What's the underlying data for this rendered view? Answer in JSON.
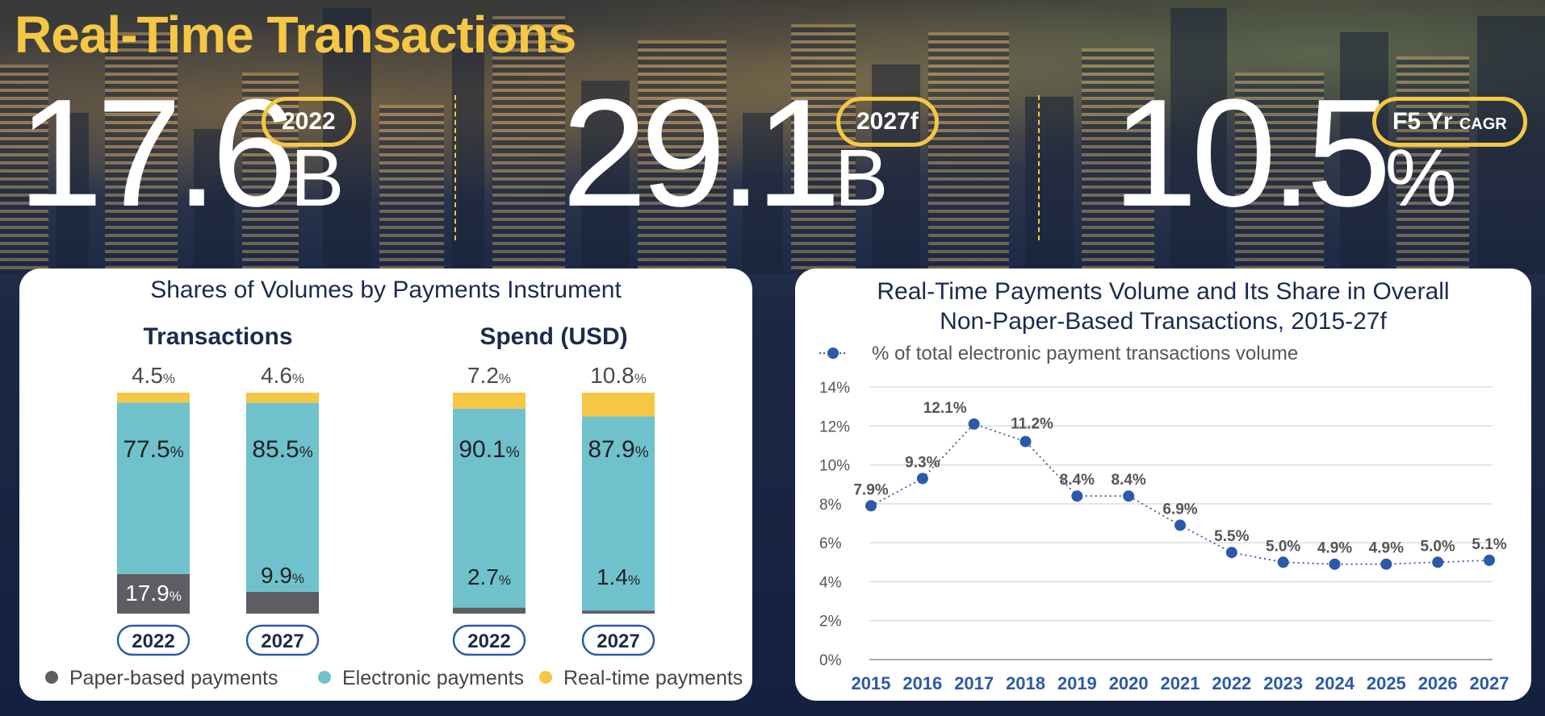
{
  "title": "Real-Time Transactions",
  "kpis": [
    {
      "number": "17.6",
      "unit": "B",
      "tag": "2022"
    },
    {
      "number": "29.1",
      "unit": "B",
      "tag": "2027f"
    },
    {
      "number": "10.5",
      "unit": "%",
      "tag": "F5 Yr",
      "tag_small": "CAGR"
    }
  ],
  "colors": {
    "paper": "#5d5e64",
    "electronic": "#6fc2cc",
    "realtime": "#f6c744",
    "navy": "#1b2b4c",
    "point": "#2c5aa8"
  },
  "chart_data": [
    {
      "type": "bar",
      "stacked": true,
      "title": "Shares of Volumes by Payments Instrument",
      "groups": [
        {
          "name": "Transactions",
          "categories": [
            "2022",
            "2027"
          ],
          "series": [
            {
              "name": "Paper-based payments",
              "values": [
                17.9,
                9.9
              ]
            },
            {
              "name": "Electronic payments",
              "values": [
                77.5,
                85.5
              ]
            },
            {
              "name": "Real-time payments",
              "values": [
                4.5,
                4.6
              ]
            }
          ]
        },
        {
          "name": "Spend (USD)",
          "categories": [
            "2022",
            "2027"
          ],
          "series": [
            {
              "name": "Paper-based payments",
              "values": [
                2.7,
                1.4
              ]
            },
            {
              "name": "Electronic payments",
              "values": [
                90.1,
                87.9
              ]
            },
            {
              "name": "Real-time payments",
              "values": [
                7.2,
                10.8
              ]
            }
          ]
        }
      ],
      "legend": [
        "Paper-based payments",
        "Electronic payments",
        "Real-time payments"
      ],
      "legend_position": "bottom"
    },
    {
      "type": "line",
      "title": [
        "Real-Time Payments Volume and Its Share in Overall",
        "Non-Paper-Based Transactions, 2015-27f"
      ],
      "legend": "% of total electronic payment transactions volume",
      "legend_position": "top-left",
      "x": [
        "2015",
        "2016",
        "2017",
        "2018",
        "2019",
        "2020",
        "2021",
        "2022",
        "2023",
        "2024",
        "2025",
        "2026",
        "2027"
      ],
      "y": [
        7.9,
        9.3,
        12.1,
        11.2,
        8.4,
        8.4,
        6.9,
        5.5,
        5.0,
        4.9,
        4.9,
        5.0,
        5.1
      ],
      "labels": [
        "7.9%",
        "9.3%",
        "12.1%",
        "11.2%",
        "8.4%",
        "8.4%",
        "6.9%",
        "5.5%",
        "5.0%",
        "4.9%",
        "4.9%",
        "5.0%",
        "5.1%"
      ],
      "yticks": [
        "0%",
        "2%",
        "4%",
        "6%",
        "8%",
        "10%",
        "12%",
        "14%"
      ],
      "ylim": [
        0,
        14
      ],
      "grid": true
    }
  ]
}
